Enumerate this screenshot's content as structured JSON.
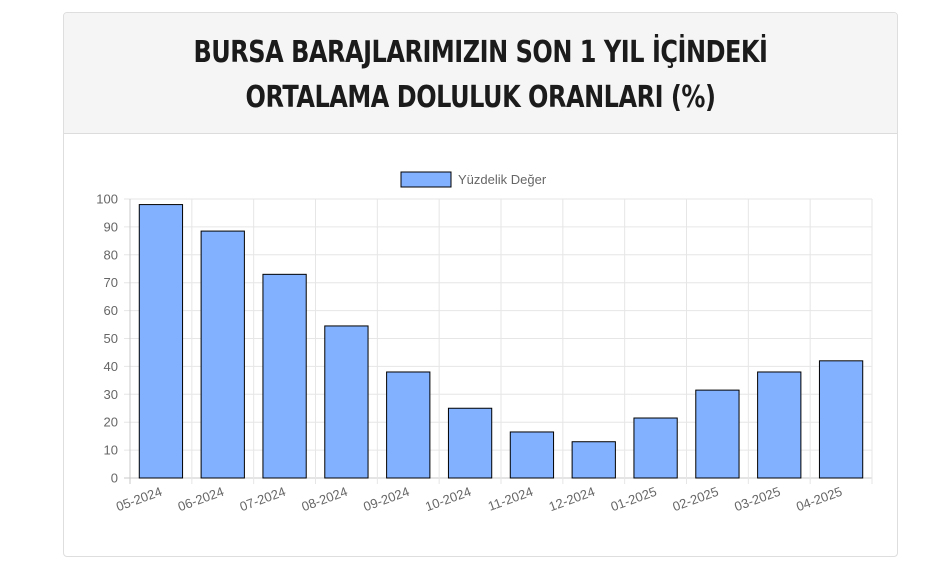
{
  "page": {
    "title": "BURSA BARAJLARIMIZIN SON 1 YIL İÇİNDEKİ ORTALAMA DOLULUK ORANLARI (%)"
  },
  "chart_data": {
    "type": "bar",
    "title": "",
    "xlabel": "",
    "ylabel": "",
    "categories": [
      "05-2024",
      "06-2024",
      "07-2024",
      "08-2024",
      "09-2024",
      "10-2024",
      "11-2024",
      "12-2024",
      "01-2025",
      "02-2025",
      "03-2025",
      "04-2025"
    ],
    "series": [
      {
        "name": "Yüzdelik Değer",
        "values": [
          98,
          88.5,
          73,
          54.5,
          38,
          25,
          16.5,
          13,
          21.5,
          31.5,
          38,
          42
        ],
        "color": "#82b1ff",
        "border_color": "#000000"
      }
    ],
    "ylim": [
      0,
      100
    ],
    "yticks": [
      0,
      10,
      20,
      30,
      40,
      50,
      60,
      70,
      80,
      90,
      100
    ],
    "grid": true,
    "legend_position": "top-center"
  }
}
